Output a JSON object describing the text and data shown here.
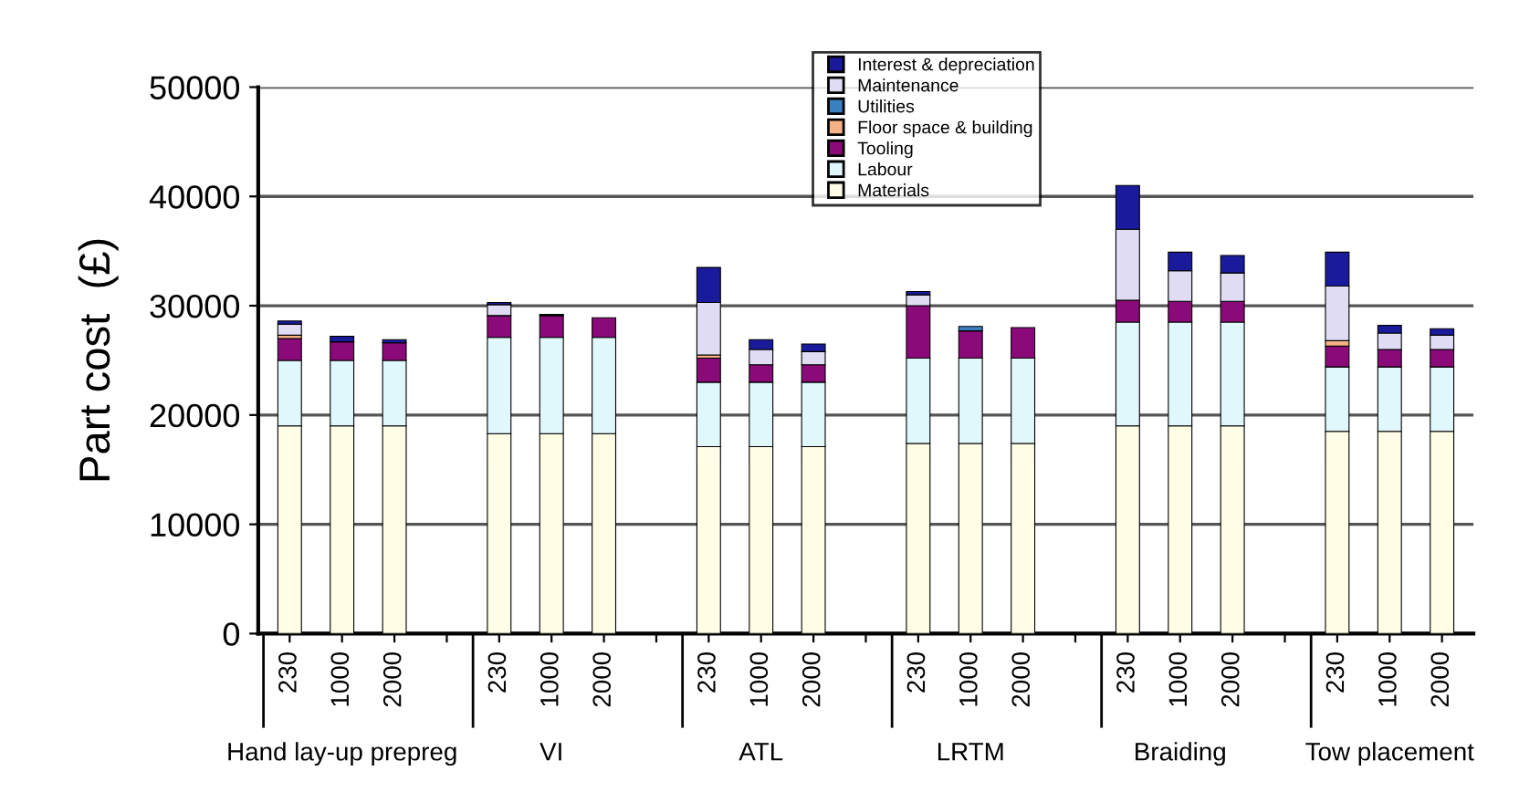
{
  "chart_data": {
    "type": "bar",
    "stacked": true,
    "ylabel": "Part cost  (£)",
    "categories": [
      "230",
      "1000",
      "2000",
      null,
      "230",
      "1000",
      "2000",
      null,
      "230",
      "1000",
      "2000",
      null,
      "230",
      "1000",
      "2000",
      null,
      "230",
      "1000",
      "2000",
      null,
      "230",
      "1000",
      "2000"
    ],
    "series": [
      {
        "name": "Materials",
        "color": "#fffde6",
        "values": [
          19000,
          19000,
          19000,
          null,
          18300,
          18300,
          18300,
          null,
          17100,
          17100,
          17100,
          null,
          17400,
          17400,
          17400,
          null,
          19000,
          19000,
          19000,
          null,
          18500,
          18500,
          18500
        ]
      },
      {
        "name": "Labour",
        "color": "#e0f8fc",
        "values": [
          6000,
          6000,
          6000,
          null,
          8800,
          8800,
          8800,
          null,
          5900,
          5900,
          5900,
          null,
          7800,
          7800,
          7800,
          null,
          9500,
          9500,
          9500,
          null,
          5900,
          5900,
          5900
        ]
      },
      {
        "name": "Tooling",
        "color": "#8b0a7a",
        "values": [
          2000,
          1700,
          1600,
          null,
          2000,
          2000,
          1800,
          null,
          2200,
          1600,
          1600,
          null,
          4800,
          2500,
          2800,
          null,
          2000,
          1900,
          1900,
          null,
          1900,
          1600,
          1600
        ]
      },
      {
        "name": "Floor space & building",
        "color": "#f4b183",
        "values": [
          300,
          0,
          0,
          null,
          0,
          0,
          0,
          null,
          300,
          0,
          0,
          null,
          0,
          0,
          0,
          null,
          0,
          0,
          0,
          null,
          500,
          0,
          0
        ]
      },
      {
        "name": "Utilities",
        "color": "#3a7fc0",
        "values": [
          0,
          0,
          0,
          null,
          0,
          0,
          0,
          null,
          0,
          0,
          0,
          null,
          0,
          400,
          0,
          null,
          0,
          0,
          0,
          null,
          0,
          0,
          0
        ]
      },
      {
        "name": "Maintenance",
        "color": "#e0dcf4",
        "values": [
          1000,
          0,
          0,
          null,
          1000,
          0,
          0,
          null,
          4800,
          1400,
          1200,
          null,
          1000,
          0,
          0,
          null,
          6500,
          2800,
          2600,
          null,
          5000,
          1500,
          1300
        ]
      },
      {
        "name": "Interest & depreciation",
        "color": "#1a1a9c",
        "values": [
          300,
          500,
          300,
          null,
          200,
          100,
          0,
          null,
          3200,
          900,
          700,
          null,
          300,
          0,
          0,
          null,
          4000,
          1700,
          1600,
          null,
          3100,
          700,
          600
        ]
      }
    ],
    "annotations": [
      "Hand lay-up prepreg",
      "VI",
      "ATL",
      "LRTM",
      "Braiding",
      "Tow placement"
    ],
    "ylim": [
      0,
      50000
    ],
    "yticks": [
      0,
      10000,
      20000,
      30000,
      40000,
      50000
    ],
    "grid": "y",
    "legend": "top"
  }
}
